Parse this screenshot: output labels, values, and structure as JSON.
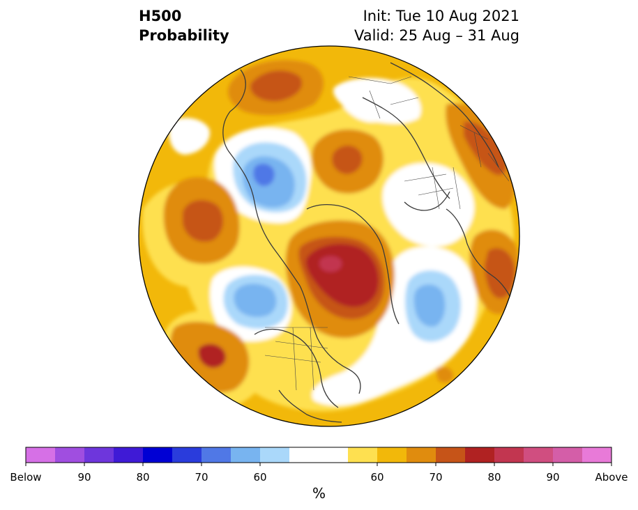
{
  "title": {
    "variable": "H500",
    "product": "Probability",
    "init": "Init: Tue 10 Aug 2021",
    "valid": "Valid: 25 Aug – 31 Aug"
  },
  "colorbar": {
    "unit": "%",
    "tick_labels": [
      "Below",
      "90",
      "80",
      "70",
      "60",
      "60",
      "70",
      "80",
      "90",
      "Above"
    ],
    "colors": [
      "#d670e6",
      "#a04ee0",
      "#6e36dc",
      "#3f1ad6",
      "#0000d4",
      "#2a3cdc",
      "#5078e6",
      "#78b4f0",
      "#aad8fa",
      "#ffffff",
      "#ffffff",
      "#fee050",
      "#f2b80a",
      "#e08c0e",
      "#c65418",
      "#b02222",
      "#c23650",
      "#d04e80",
      "#d45ea8",
      "#e87ad8"
    ]
  },
  "map": {
    "projection": "north-polar-stereographic",
    "background_color": "#f2b80a",
    "anomalies": [
      {
        "region": "Bering Sea / Alaska",
        "sign": "above",
        "level": 70
      },
      {
        "region": "North Pacific",
        "sign": "above",
        "level": 70
      },
      {
        "region": "Eastern Pacific",
        "sign": "above",
        "level": 80
      },
      {
        "region": "Canadian Arctic / Hudson Bay",
        "sign": "above",
        "level": 80
      },
      {
        "region": "Siberian Arctic",
        "sign": "above",
        "level": 70
      },
      {
        "region": "Northwest Europe",
        "sign": "above",
        "level": 70
      },
      {
        "region": "Kara Sea",
        "sign": "above",
        "level": 70
      },
      {
        "region": "East Siberia",
        "sign": "below",
        "level": 70
      },
      {
        "region": "Gulf of Alaska",
        "sign": "below",
        "level": 70
      },
      {
        "region": "North Atlantic",
        "sign": "below",
        "level": 70
      }
    ]
  }
}
